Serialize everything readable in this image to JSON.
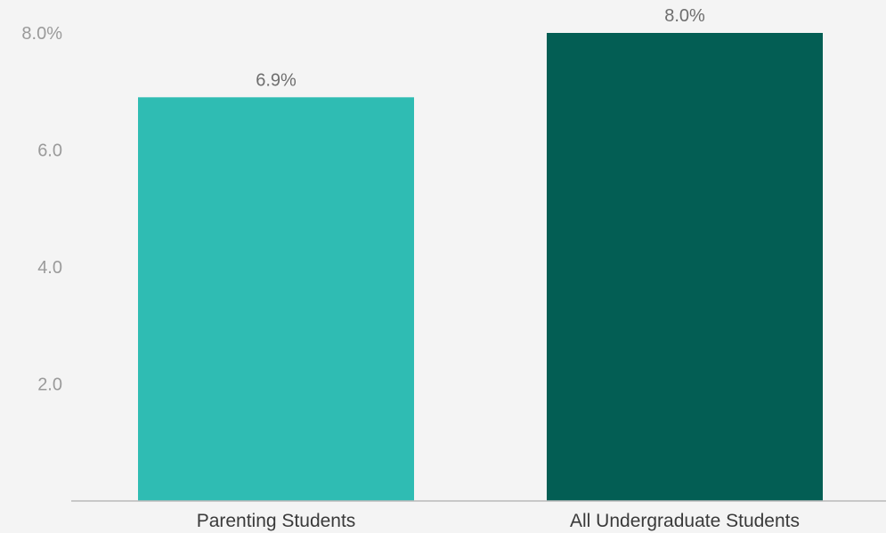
{
  "chart_data": {
    "type": "bar",
    "title": "",
    "xlabel": "",
    "ylabel": "",
    "categories": [
      "Parenting Students",
      "All Undergraduate Students"
    ],
    "values": [
      6.9,
      8.0
    ],
    "data_labels": [
      "6.9%",
      "8.0%"
    ],
    "colors": [
      "#2fbcb3",
      "#035e54"
    ],
    "ylim": [
      0,
      8.0
    ],
    "y_ticks": [
      {
        "value": 2.0,
        "label": "2.0"
      },
      {
        "value": 4.0,
        "label": "4.0"
      },
      {
        "value": 6.0,
        "label": "6.0"
      },
      {
        "value": 8.0,
        "label": "8.0%"
      }
    ],
    "grid": false,
    "legend": "none"
  }
}
